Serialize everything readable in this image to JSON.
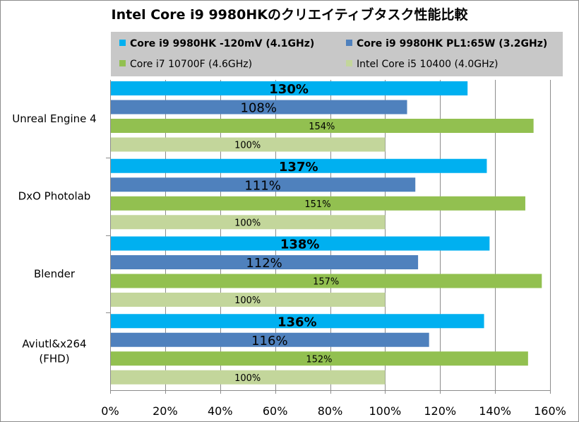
{
  "chart_data": {
    "type": "bar",
    "orientation": "horizontal",
    "title": "Intel Core i9 9980HKのクリエイティブタスク性能比較",
    "categories": [
      "Unreal Engine 4",
      "DxO Photolab",
      "Blender",
      "Aviutl&x264\n(FHD)"
    ],
    "series": [
      {
        "name": "Core i9 9980HK -120mV (4.1GHz)",
        "color": "#00b0f0",
        "bold_legend": true,
        "label_bold": true,
        "values": [
          130,
          137,
          138,
          136
        ]
      },
      {
        "name": "Core i9 9980HK PL1:65W (3.2GHz)",
        "color": "#4f81bd",
        "bold_legend": true,
        "label_bold": false,
        "values": [
          108,
          111,
          112,
          116
        ]
      },
      {
        "name": "Core i7 10700F (4.6GHz)",
        "color": "#92c050",
        "bold_legend": false,
        "label_bold": false,
        "values": [
          154,
          151,
          157,
          152
        ]
      },
      {
        "name": "Intel Core i5 10400 (4.0GHz)",
        "color": "#c3d69b",
        "bold_legend": false,
        "label_bold": false,
        "values": [
          100,
          100,
          100,
          100
        ]
      }
    ],
    "xlim": [
      0,
      160
    ],
    "xticks": [
      0,
      20,
      40,
      60,
      80,
      100,
      120,
      140,
      160
    ],
    "tick_suffix": "%",
    "value_suffix": "%",
    "grid": true,
    "legend_position": "top"
  }
}
